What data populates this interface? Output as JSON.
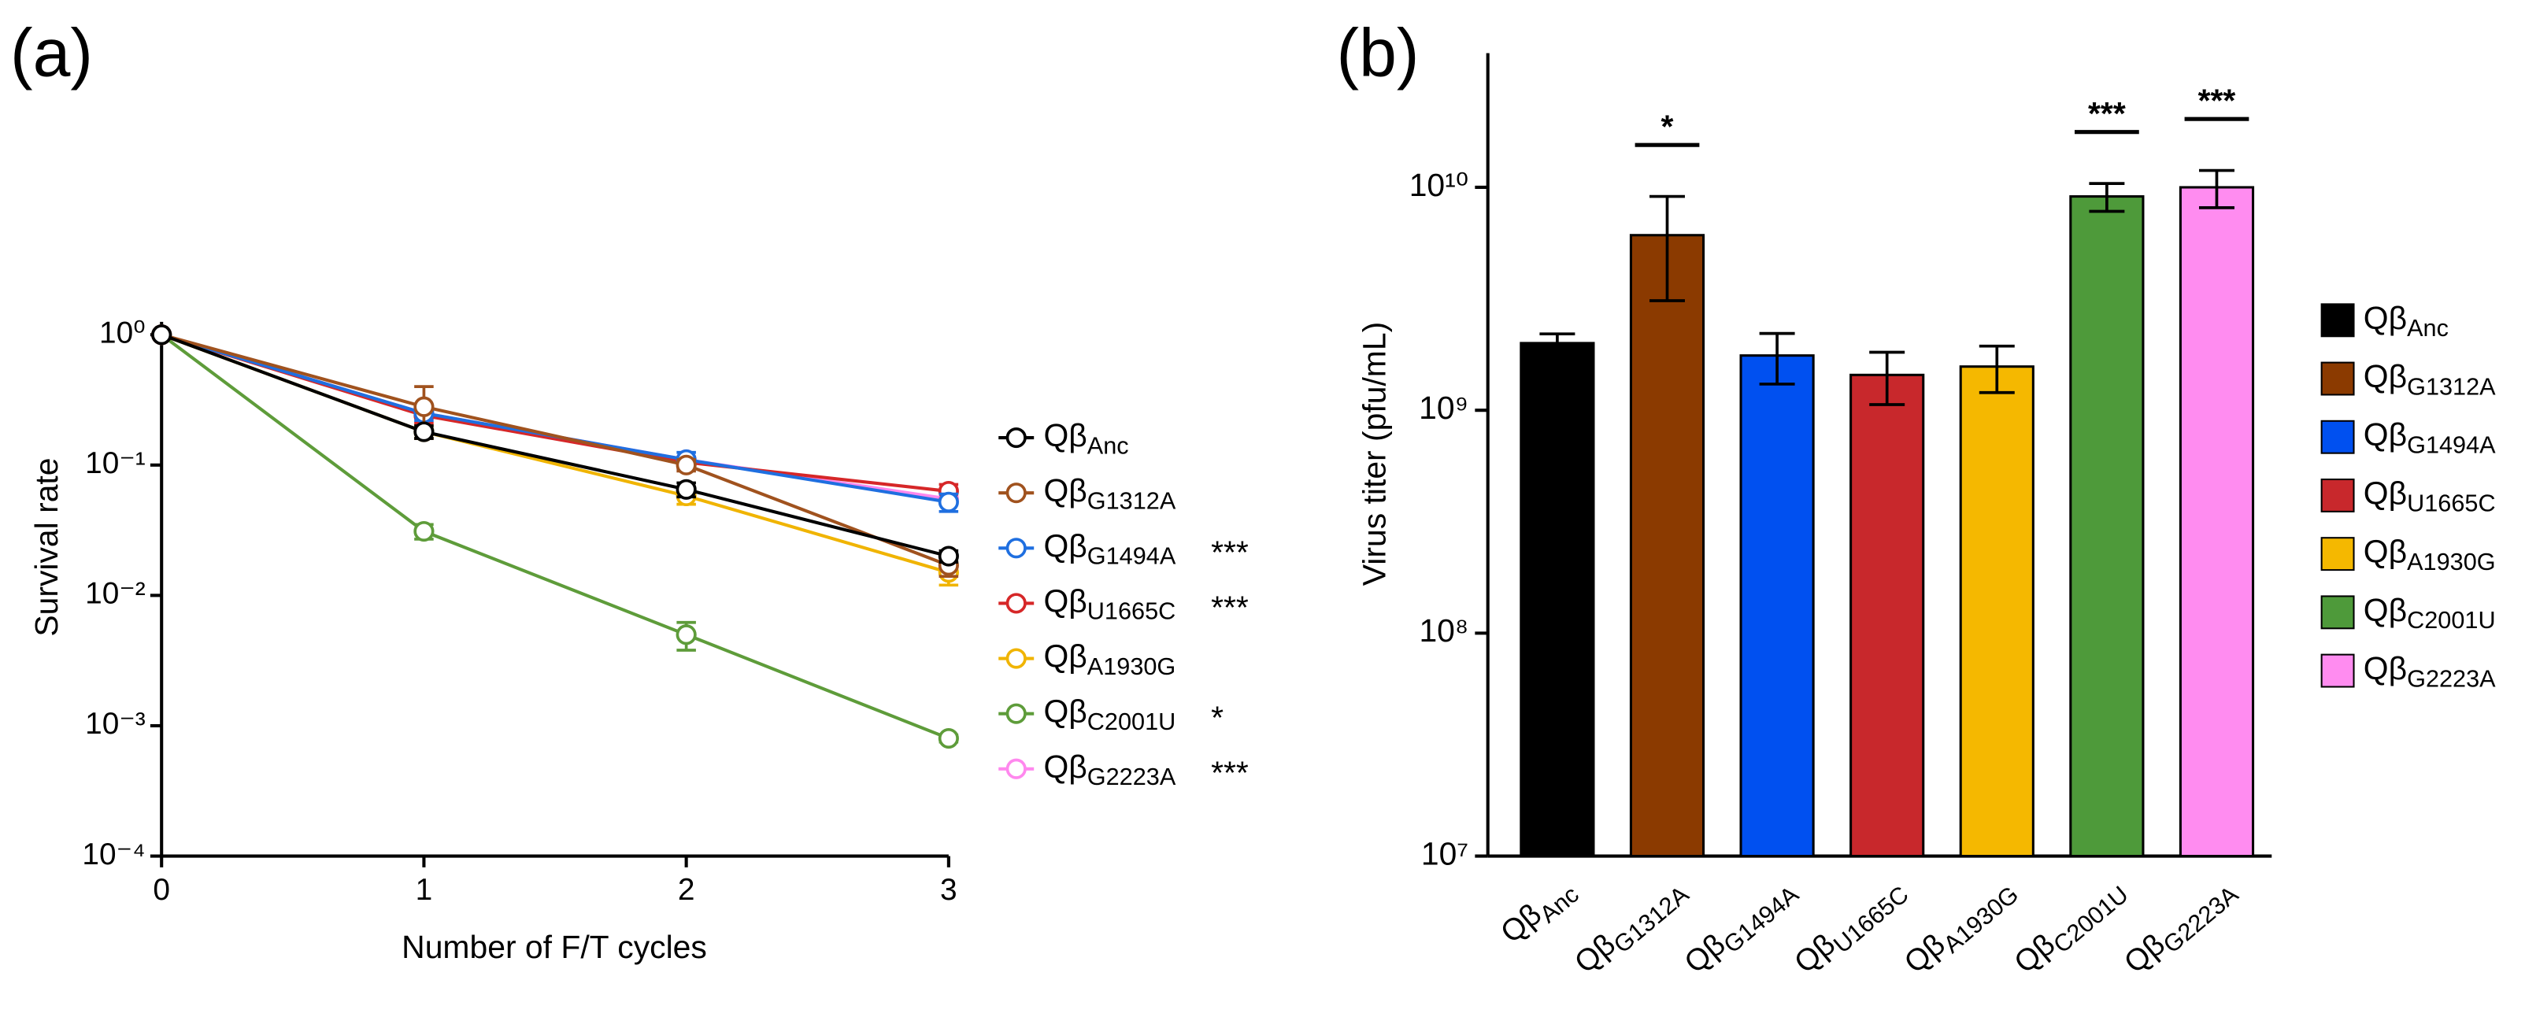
{
  "chart_data": [
    {
      "type": "line",
      "panel_label": "(a)",
      "ylabel": "Survival rate",
      "xlabel": "Number of F/T cycles",
      "log_y": true,
      "x": [
        0,
        1,
        2,
        3
      ],
      "xlim": [
        0,
        3
      ],
      "xticks": [
        0,
        1,
        2,
        3
      ],
      "ylim": [
        0.0001,
        1
      ],
      "yticks": [
        {
          "value": 1,
          "label": "10⁰"
        },
        {
          "value": 0.1,
          "label": "10⁻¹"
        },
        {
          "value": 0.01,
          "label": "10⁻²"
        },
        {
          "value": 0.001,
          "label": "10⁻³"
        },
        {
          "value": 0.0001,
          "label": "10⁻⁴"
        }
      ],
      "series": [
        {
          "name": "QβAnc",
          "color": "#000000",
          "values": [
            1,
            0.18,
            0.065,
            0.02
          ],
          "errors": [
            0,
            0.02,
            0.008,
            0.002
          ],
          "significance": null
        },
        {
          "name": "QβG1312A",
          "color": "#a0521e",
          "values": [
            1,
            0.28,
            0.1,
            0.017
          ],
          "errors": [
            0,
            0.12,
            0.01,
            0.003
          ],
          "significance": null
        },
        {
          "name": "QβG1494A",
          "color": "#1f6fe0",
          "values": [
            1,
            0.25,
            0.11,
            0.052
          ],
          "errors": [
            0,
            0.03,
            0.015,
            0.008
          ],
          "significance": "***"
        },
        {
          "name": "QβU1665C",
          "color": "#d62728",
          "values": [
            1,
            0.24,
            0.105,
            0.063
          ],
          "errors": [
            0,
            0.03,
            0.01,
            0.008
          ],
          "significance": "***"
        },
        {
          "name": "QβA1930G",
          "color": "#f0b400",
          "values": [
            1,
            0.18,
            0.058,
            0.015
          ],
          "errors": [
            0,
            0.02,
            0.008,
            0.003
          ],
          "significance": null
        },
        {
          "name": "QβC2001U",
          "color": "#5e9c3a",
          "values": [
            1,
            0.031,
            0.005,
            0.0008
          ],
          "errors": [
            0,
            0.004,
            0.0012,
            5e-05
          ],
          "significance": "*"
        },
        {
          "name": "QβG2223A",
          "color": "#ff88ee",
          "values": [
            1,
            0.25,
            0.11,
            0.055
          ],
          "errors": [
            0,
            0,
            0,
            0
          ],
          "significance": "***"
        }
      ]
    },
    {
      "type": "bar",
      "panel_label": "(b)",
      "ylabel": "Virus titer (pfu/mL)",
      "log_y": true,
      "categories": [
        "QβAnc",
        "QβG1312A",
        "QβG1494A",
        "QβU1665C",
        "QβA1930G",
        "QβC2001U",
        "QβG2223A"
      ],
      "values": [
        2000000000,
        6100000000,
        1760000000,
        1440000000,
        1570000000,
        9100000000,
        10000000000
      ],
      "errors": [
        200000000,
        3000000000,
        450000000,
        380000000,
        370000000,
        1300000000,
        1900000000
      ],
      "colors": [
        "#000000",
        "#8b3a00",
        "#0050f0",
        "#c8282c",
        "#f5b800",
        "#4e9a3a",
        "#ff8cf0"
      ],
      "significance": [
        null,
        "*",
        null,
        null,
        null,
        "***",
        "***"
      ],
      "ylim": [
        10000000,
        40000000000
      ],
      "yticks": [
        {
          "value": 10000000,
          "label": "10⁷"
        },
        {
          "value": 100000000,
          "label": "10⁸"
        },
        {
          "value": 1000000000,
          "label": "10⁹"
        },
        {
          "value": 10000000000,
          "label": "10¹⁰"
        }
      ]
    }
  ]
}
